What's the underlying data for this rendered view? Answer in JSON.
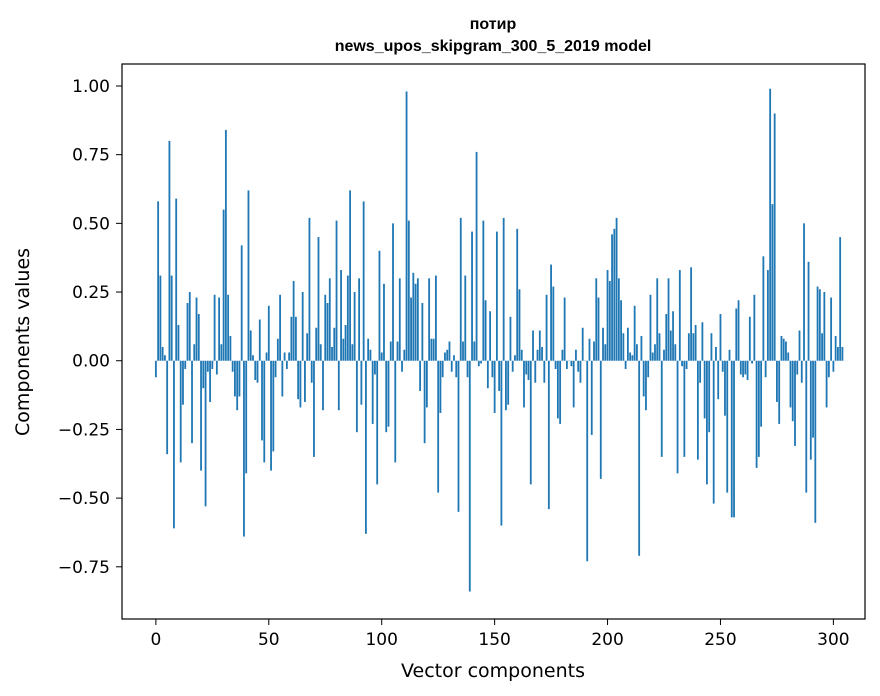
{
  "chart_data": {
    "type": "bar",
    "title": [
      "потир",
      "news_upos_skipgram_300_5_2019 model"
    ],
    "xlabel": "Vector components",
    "ylabel": "Components values",
    "xlim": [
      -15,
      314
    ],
    "ylim": [
      -0.94,
      1.08
    ],
    "xticks": [
      0,
      50,
      100,
      150,
      200,
      250,
      300
    ],
    "xtick_labels": [
      "0",
      "50",
      "100",
      "150",
      "200",
      "250",
      "300"
    ],
    "yticks": [
      1.0,
      0.75,
      0.5,
      0.25,
      0.0,
      -0.25,
      -0.5,
      -0.75
    ],
    "ytick_labels": [
      "1.00",
      "0.75",
      "0.50",
      "0.25",
      "0.00",
      "−0.25",
      "−0.50",
      "−0.75"
    ],
    "grid": false,
    "bar_color": "#1f77b4",
    "values": [
      -0.06,
      0.58,
      0.31,
      0.05,
      0.02,
      -0.34,
      0.8,
      0.31,
      -0.61,
      0.59,
      0.13,
      -0.37,
      -0.16,
      -0.03,
      0.21,
      0.25,
      -0.3,
      0.06,
      0.23,
      0.17,
      -0.4,
      -0.1,
      -0.53,
      -0.04,
      -0.15,
      -0.03,
      0.24,
      -0.05,
      0.23,
      0.06,
      0.55,
      0.84,
      0.24,
      0.09,
      -0.04,
      -0.13,
      -0.18,
      -0.13,
      0.42,
      -0.64,
      -0.41,
      0.62,
      0.11,
      0.02,
      -0.07,
      -0.08,
      0.15,
      -0.29,
      -0.37,
      0.03,
      0.2,
      -0.4,
      -0.33,
      -0.06,
      0.08,
      0.24,
      -0.13,
      0.03,
      -0.03,
      0.03,
      0.16,
      0.29,
      0.16,
      -0.14,
      -0.17,
      0.25,
      -0.15,
      0.1,
      0.52,
      -0.08,
      -0.35,
      0.12,
      0.45,
      0.06,
      -0.18,
      0.24,
      0.21,
      0.3,
      0.05,
      0.12,
      0.51,
      -0.18,
      0.33,
      0.08,
      0.13,
      0.31,
      0.62,
      0.06,
      0.25,
      -0.26,
      0.3,
      -0.16,
      0.58,
      -0.63,
      0.08,
      0.04,
      -0.23,
      -0.05,
      -0.45,
      0.4,
      0.03,
      0.28,
      -0.26,
      -0.24,
      0.07,
      0.5,
      -0.37,
      0.07,
      0.3,
      -0.04,
      0.04,
      0.98,
      0.51,
      0.23,
      0.32,
      0.28,
      0.3,
      -0.11,
      0.21,
      -0.3,
      -0.17,
      0.3,
      0.08,
      0.08,
      0.31,
      -0.48,
      -0.19,
      -0.06,
      0.03,
      0.04,
      0.07,
      -0.04,
      0.02,
      -0.06,
      -0.55,
      0.52,
      0.07,
      0.31,
      -0.06,
      -0.84,
      0.47,
      0.07,
      0.76,
      -0.02,
      -0.01,
      0.51,
      0.22,
      -0.1,
      0.18,
      -0.06,
      -0.19,
      0.47,
      -0.11,
      -0.6,
      0.52,
      -0.18,
      -0.16,
      0.16,
      -0.04,
      0.02,
      0.48,
      0.26,
      0.04,
      -0.17,
      -0.05,
      -0.07,
      -0.45,
      0.11,
      -0.08,
      0.04,
      0.11,
      0.05,
      -0.08,
      0.24,
      -0.54,
      0.35,
      0.27,
      -0.03,
      -0.21,
      -0.23,
      0.04,
      0.23,
      -0.03,
      0.0,
      -0.02,
      -0.17,
      0.04,
      -0.04,
      -0.08,
      0.12,
      0.0,
      -0.73,
      0.08,
      -0.27,
      0.07,
      0.3,
      0.23,
      -0.43,
      0.12,
      0.06,
      0.33,
      0.29,
      0.46,
      0.48,
      0.52,
      0.3,
      0.22,
      0.1,
      -0.03,
      0.12,
      0.03,
      0.02,
      0.2,
      0.06,
      -0.71,
      0.09,
      -0.13,
      -0.18,
      -0.06,
      0.24,
      0.03,
      0.06,
      0.3,
      0.1,
      -0.35,
      0.04,
      0.17,
      0.3,
      0.11,
      0.18,
      0.06,
      -0.41,
      0.33,
      -0.02,
      -0.35,
      -0.03,
      0.1,
      0.34,
      0.1,
      0.13,
      -0.36,
      -0.08,
      0.14,
      -0.21,
      -0.45,
      -0.26,
      0.1,
      -0.52,
      0.05,
      -0.14,
      0.17,
      -0.04,
      -0.2,
      -0.48,
      0.04,
      -0.57,
      -0.57,
      0.19,
      0.22,
      -0.05,
      -0.06,
      -0.05,
      -0.07,
      0.16,
      -0.01,
      0.24,
      -0.39,
      -0.35,
      -0.24,
      0.38,
      -0.06,
      0.33,
      0.99,
      0.57,
      0.9,
      -0.15,
      -0.23,
      0.09,
      0.08,
      0.07,
      0.03,
      -0.17,
      -0.22,
      -0.31,
      -0.05,
      0.11,
      -0.08,
      0.5,
      -0.48,
      0.36,
      -0.36,
      -0.28,
      -0.59,
      0.27,
      0.26,
      0.1,
      0.25,
      -0.17,
      -0.06,
      0.23,
      -0.04,
      0.09,
      0.05,
      0.45,
      0.05
    ]
  }
}
